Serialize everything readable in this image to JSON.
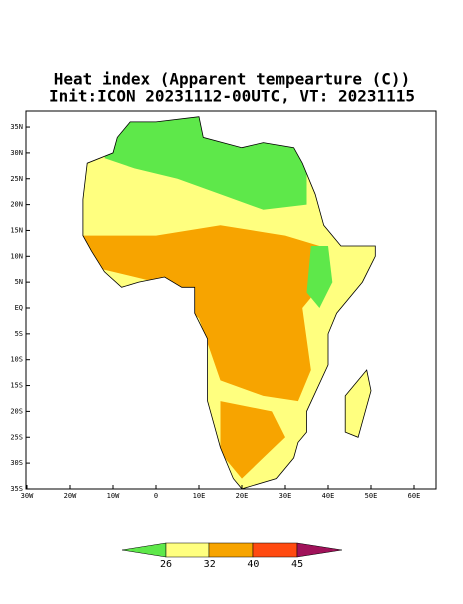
{
  "title": {
    "line1": "Heat index (Apparent tempearture (C))",
    "line2": "Init:ICON 20231112-00UTC, VT: 20231115"
  },
  "map": {
    "lon_labels": [
      "30W",
      "20W",
      "10W",
      "0",
      "10E",
      "20E",
      "30E",
      "40E",
      "50E",
      "60E"
    ],
    "lat_labels": [
      "35N",
      "30N",
      "25N",
      "20N",
      "15N",
      "10N",
      "5N",
      "EQ",
      "5S",
      "10S",
      "15S",
      "20S",
      "25S",
      "30S",
      "35S"
    ]
  },
  "colorbar": {
    "labels": [
      "26",
      "32",
      "40",
      "45"
    ]
  }
}
